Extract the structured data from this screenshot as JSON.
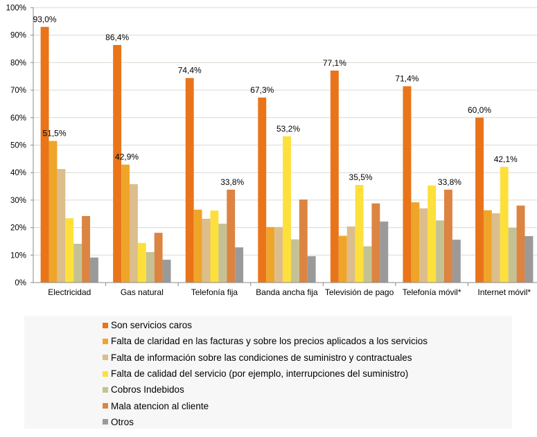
{
  "chart_data": {
    "type": "bar",
    "title": "",
    "xlabel": "",
    "ylabel": "",
    "ylim": [
      0,
      100
    ],
    "y_ticks": [
      "0%",
      "10%",
      "20%",
      "30%",
      "40%",
      "50%",
      "60%",
      "70%",
      "80%",
      "90%",
      "100%"
    ],
    "grid": true,
    "legend_position": "bottom",
    "categories": [
      "Electricidad",
      "Gas natural",
      "Telefonía fija",
      "Banda ancha fija",
      "Televisión de pago",
      "Telefonía móvil*",
      "Internet móvil*"
    ],
    "series": [
      {
        "name": "Son servicios caros",
        "color": "#e97419",
        "values": [
          93.0,
          86.4,
          74.4,
          67.3,
          77.1,
          71.4,
          60.0
        ],
        "labels": [
          "93,0%",
          "86,4%",
          "74,4%",
          "67,3%",
          "77,1%",
          "71,4%",
          "60,0%"
        ]
      },
      {
        "name": "Falta de claridad en las facturas y sobre los precios aplicados a los servicios",
        "color": "#efa52a",
        "values": [
          51.5,
          42.9,
          26.5,
          20.2,
          17.0,
          29.2,
          26.3
        ],
        "labels": [
          "51,5%",
          "42,9%",
          null,
          null,
          null,
          null,
          null
        ]
      },
      {
        "name": "Falta de información sobre las condiciones de suministro y contractuales",
        "color": "#dcbd8c",
        "values": [
          41.3,
          35.8,
          23.2,
          20.2,
          20.4,
          27.0,
          25.2
        ],
        "labels": [
          null,
          null,
          null,
          null,
          null,
          null,
          null
        ]
      },
      {
        "name": "Falta de calidad del servicio (por ejemplo, interrupciones del suministro)",
        "color": "#fde03c",
        "values": [
          23.4,
          14.4,
          26.2,
          53.2,
          35.5,
          35.3,
          42.1
        ],
        "labels": [
          null,
          null,
          null,
          "53,2%",
          "35,5%",
          null,
          "42,1%"
        ]
      },
      {
        "name": "Cobros Indebidos",
        "color": "#c4c294",
        "values": [
          14.1,
          11.1,
          21.4,
          15.7,
          13.2,
          22.6,
          19.9
        ],
        "labels": [
          null,
          null,
          null,
          null,
          null,
          null,
          null
        ]
      },
      {
        "name": "Mala atencion al cliente",
        "color": "#dc8442",
        "values": [
          24.2,
          18.1,
          33.8,
          30.2,
          28.8,
          33.8,
          28.0
        ],
        "labels": [
          null,
          null,
          "33,8%",
          null,
          null,
          "33,8%",
          null
        ]
      },
      {
        "name": "Otros",
        "color": "#9a9a9a",
        "values": [
          9.1,
          8.3,
          12.8,
          9.6,
          22.2,
          15.6,
          16.9
        ],
        "labels": [
          null,
          null,
          null,
          null,
          null,
          null,
          null
        ]
      }
    ]
  }
}
